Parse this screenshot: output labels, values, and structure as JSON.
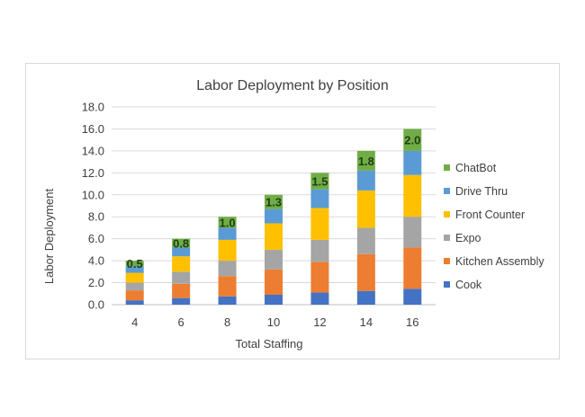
{
  "chart_data": {
    "type": "bar",
    "stacked": true,
    "title": "Labor Deployment by Position",
    "xlabel": "Total Staffing",
    "ylabel": "Labor Deployment",
    "ylim": [
      0,
      18
    ],
    "ytick_step": 2,
    "ytick_labels": [
      "0.0",
      "2.0",
      "4.0",
      "6.0",
      "8.0",
      "10.0",
      "12.0",
      "14.0",
      "16.0",
      "18.0"
    ],
    "categories": [
      "4",
      "6",
      "8",
      "10",
      "12",
      "14",
      "16"
    ],
    "series": [
      {
        "name": "Cook",
        "color": "#4472c4",
        "values": [
          0.4,
          0.6,
          0.75,
          0.9,
          1.1,
          1.25,
          1.45
        ]
      },
      {
        "name": "Kitchen Assembly",
        "color": "#ed7d31",
        "values": [
          0.9,
          1.3,
          1.85,
          2.3,
          2.8,
          3.35,
          3.75
        ]
      },
      {
        "name": "Expo",
        "color": "#a5a5a5",
        "values": [
          0.7,
          1.1,
          1.4,
          1.8,
          2.0,
          2.4,
          2.8
        ]
      },
      {
        "name": "Front Counter",
        "color": "#ffc000",
        "values": [
          0.9,
          1.4,
          1.9,
          2.4,
          2.9,
          3.4,
          3.8
        ]
      },
      {
        "name": "Drive Thru",
        "color": "#5b9bd5",
        "values": [
          0.6,
          0.8,
          1.1,
          1.3,
          1.7,
          1.8,
          2.2
        ]
      },
      {
        "name": "ChatBot",
        "color": "#70ad47",
        "values": [
          0.5,
          0.8,
          1.0,
          1.3,
          1.5,
          1.8,
          2.0
        ]
      }
    ],
    "data_labels": {
      "series": "ChatBot",
      "labels": [
        "0.5",
        "0.8",
        "1.0",
        "1.3",
        "1.5",
        "1.8",
        "2.0"
      ]
    },
    "legend_order": [
      "ChatBot",
      "Drive Thru",
      "Front Counter",
      "Expo",
      "Kitchen Assembly",
      "Cook"
    ],
    "legend_position": "right",
    "grid": true
  }
}
